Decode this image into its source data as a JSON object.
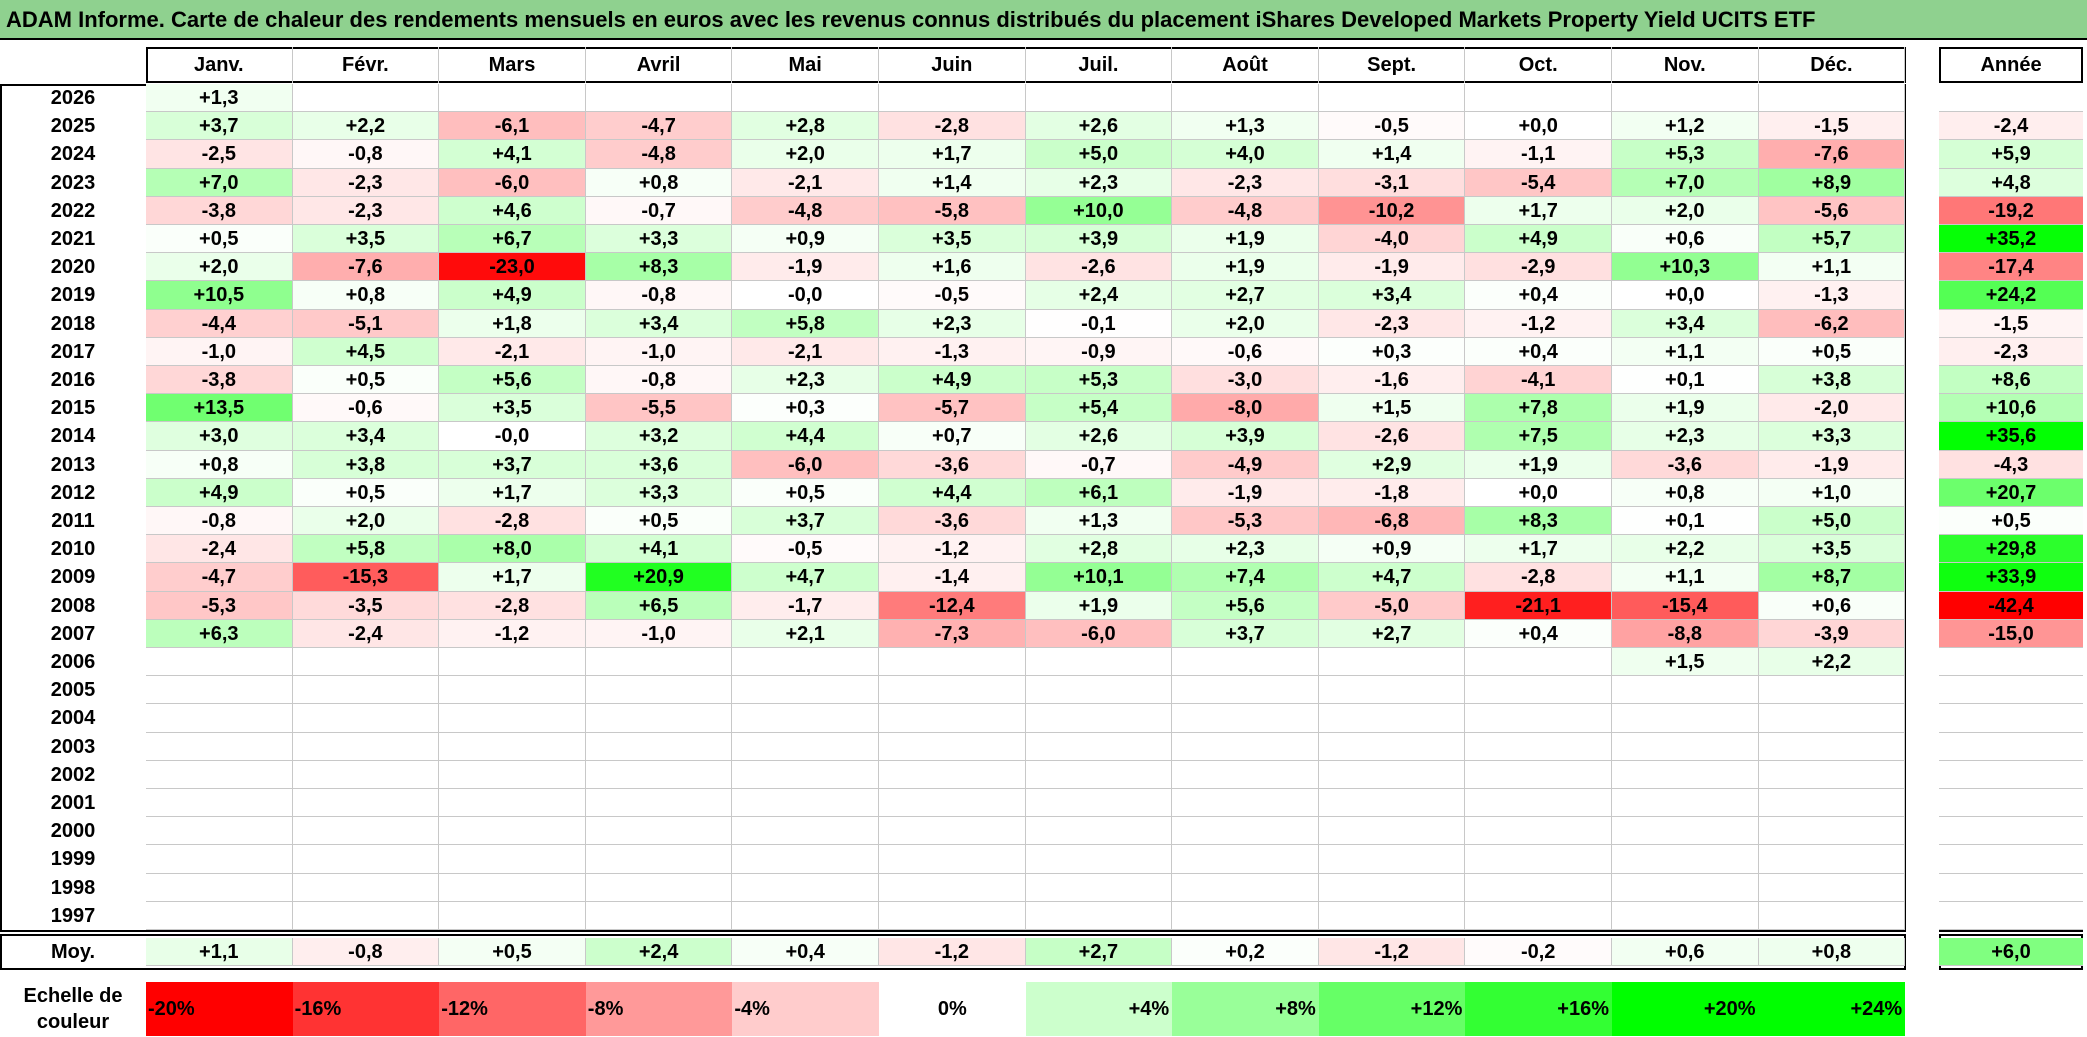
{
  "title": "ADAM Informe. Carte de chaleur des rendements mensuels en euros avec les revenus connus distribués du placement iShares Developed Markets Property Yield UCITS ETF",
  "chart_data": {
    "type": "heatmap",
    "columns": [
      "Janv.",
      "Févr.",
      "Mars",
      "Avril",
      "Mai",
      "Juin",
      "Juil.",
      "Août",
      "Sept.",
      "Oct.",
      "Nov.",
      "Déc."
    ],
    "year_column_label": "Année",
    "rows": [
      {
        "year": "2026",
        "months": [
          "+1,3",
          "",
          "",
          "",
          "",
          "",
          "",
          "",
          "",
          "",
          "",
          ""
        ],
        "annual": ""
      },
      {
        "year": "2025",
        "months": [
          "+3,7",
          "+2,2",
          "-6,1",
          "-4,7",
          "+2,8",
          "-2,8",
          "+2,6",
          "+1,3",
          "-0,5",
          "+0,0",
          "+1,2",
          "-1,5"
        ],
        "annual": "-2,4"
      },
      {
        "year": "2024",
        "months": [
          "-2,5",
          "-0,8",
          "+4,1",
          "-4,8",
          "+2,0",
          "+1,7",
          "+5,0",
          "+4,0",
          "+1,4",
          "-1,1",
          "+5,3",
          "-7,6"
        ],
        "annual": "+5,9"
      },
      {
        "year": "2023",
        "months": [
          "+7,0",
          "-2,3",
          "-6,0",
          "+0,8",
          "-2,1",
          "+1,4",
          "+2,3",
          "-2,3",
          "-3,1",
          "-5,4",
          "+7,0",
          "+8,9"
        ],
        "annual": "+4,8"
      },
      {
        "year": "2022",
        "months": [
          "-3,8",
          "-2,3",
          "+4,6",
          "-0,7",
          "-4,8",
          "-5,8",
          "+10,0",
          "-4,8",
          "-10,2",
          "+1,7",
          "+2,0",
          "-5,6"
        ],
        "annual": "-19,2"
      },
      {
        "year": "2021",
        "months": [
          "+0,5",
          "+3,5",
          "+6,7",
          "+3,3",
          "+0,9",
          "+3,5",
          "+3,9",
          "+1,9",
          "-4,0",
          "+4,9",
          "+0,6",
          "+5,7"
        ],
        "annual": "+35,2"
      },
      {
        "year": "2020",
        "months": [
          "+2,0",
          "-7,6",
          "-23,0",
          "+8,3",
          "-1,9",
          "+1,6",
          "-2,6",
          "+1,9",
          "-1,9",
          "-2,9",
          "+10,3",
          "+1,1"
        ],
        "annual": "-17,4"
      },
      {
        "year": "2019",
        "months": [
          "+10,5",
          "+0,8",
          "+4,9",
          "-0,8",
          "-0,0",
          "-0,5",
          "+2,4",
          "+2,7",
          "+3,4",
          "+0,4",
          "+0,0",
          "-1,3"
        ],
        "annual": "+24,2"
      },
      {
        "year": "2018",
        "months": [
          "-4,4",
          "-5,1",
          "+1,8",
          "+3,4",
          "+5,8",
          "+2,3",
          "-0,1",
          "+2,0",
          "-2,3",
          "-1,2",
          "+3,4",
          "-6,2"
        ],
        "annual": "-1,5"
      },
      {
        "year": "2017",
        "months": [
          "-1,0",
          "+4,5",
          "-2,1",
          "-1,0",
          "-2,1",
          "-1,3",
          "-0,9",
          "-0,6",
          "+0,3",
          "+0,4",
          "+1,1",
          "+0,5"
        ],
        "annual": "-2,3"
      },
      {
        "year": "2016",
        "months": [
          "-3,8",
          "+0,5",
          "+5,6",
          "-0,8",
          "+2,3",
          "+4,9",
          "+5,3",
          "-3,0",
          "-1,6",
          "-4,1",
          "+0,1",
          "+3,8"
        ],
        "annual": "+8,6"
      },
      {
        "year": "2015",
        "months": [
          "+13,5",
          "-0,6",
          "+3,5",
          "-5,5",
          "+0,3",
          "-5,7",
          "+5,4",
          "-8,0",
          "+1,5",
          "+7,8",
          "+1,9",
          "-2,0"
        ],
        "annual": "+10,6"
      },
      {
        "year": "2014",
        "months": [
          "+3,0",
          "+3,4",
          "-0,0",
          "+3,2",
          "+4,4",
          "+0,7",
          "+2,6",
          "+3,9",
          "-2,6",
          "+7,5",
          "+2,3",
          "+3,3"
        ],
        "annual": "+35,6"
      },
      {
        "year": "2013",
        "months": [
          "+0,8",
          "+3,8",
          "+3,7",
          "+3,6",
          "-6,0",
          "-3,6",
          "-0,7",
          "-4,9",
          "+2,9",
          "+1,9",
          "-3,6",
          "-1,9"
        ],
        "annual": "-4,3"
      },
      {
        "year": "2012",
        "months": [
          "+4,9",
          "+0,5",
          "+1,7",
          "+3,3",
          "+0,5",
          "+4,4",
          "+6,1",
          "-1,9",
          "-1,8",
          "+0,0",
          "+0,8",
          "+1,0"
        ],
        "annual": "+20,7"
      },
      {
        "year": "2011",
        "months": [
          "-0,8",
          "+2,0",
          "-2,8",
          "+0,5",
          "+3,7",
          "-3,6",
          "+1,3",
          "-5,3",
          "-6,8",
          "+8,3",
          "+0,1",
          "+5,0"
        ],
        "annual": "+0,5"
      },
      {
        "year": "2010",
        "months": [
          "-2,4",
          "+5,8",
          "+8,0",
          "+4,1",
          "-0,5",
          "-1,2",
          "+2,8",
          "+2,3",
          "+0,9",
          "+1,7",
          "+2,2",
          "+3,5"
        ],
        "annual": "+29,8"
      },
      {
        "year": "2009",
        "months": [
          "-4,7",
          "-15,3",
          "+1,7",
          "+20,9",
          "+4,7",
          "-1,4",
          "+10,1",
          "+7,4",
          "+4,7",
          "-2,8",
          "+1,1",
          "+8,7"
        ],
        "annual": "+33,9"
      },
      {
        "year": "2008",
        "months": [
          "-5,3",
          "-3,5",
          "-2,8",
          "+6,5",
          "-1,7",
          "-12,4",
          "+1,9",
          "+5,6",
          "-5,0",
          "-21,1",
          "-15,4",
          "+0,6"
        ],
        "annual": "-42,4"
      },
      {
        "year": "2007",
        "months": [
          "+6,3",
          "-2,4",
          "-1,2",
          "-1,0",
          "+2,1",
          "-7,3",
          "-6,0",
          "+3,7",
          "+2,7",
          "+0,4",
          "-8,8",
          "-3,9"
        ],
        "annual": "-15,0"
      },
      {
        "year": "2006",
        "months": [
          "",
          "",
          "",
          "",
          "",
          "",
          "",
          "",
          "",
          "",
          "+1,5",
          "+2,2"
        ],
        "annual": ""
      },
      {
        "year": "2005",
        "months": [
          "",
          "",
          "",
          "",
          "",
          "",
          "",
          "",
          "",
          "",
          "",
          ""
        ],
        "annual": ""
      },
      {
        "year": "2004",
        "months": [
          "",
          "",
          "",
          "",
          "",
          "",
          "",
          "",
          "",
          "",
          "",
          ""
        ],
        "annual": ""
      },
      {
        "year": "2003",
        "months": [
          "",
          "",
          "",
          "",
          "",
          "",
          "",
          "",
          "",
          "",
          "",
          ""
        ],
        "annual": ""
      },
      {
        "year": "2002",
        "months": [
          "",
          "",
          "",
          "",
          "",
          "",
          "",
          "",
          "",
          "",
          "",
          ""
        ],
        "annual": ""
      },
      {
        "year": "2001",
        "months": [
          "",
          "",
          "",
          "",
          "",
          "",
          "",
          "",
          "",
          "",
          "",
          ""
        ],
        "annual": ""
      },
      {
        "year": "2000",
        "months": [
          "",
          "",
          "",
          "",
          "",
          "",
          "",
          "",
          "",
          "",
          "",
          ""
        ],
        "annual": ""
      },
      {
        "year": "1999",
        "months": [
          "",
          "",
          "",
          "",
          "",
          "",
          "",
          "",
          "",
          "",
          "",
          ""
        ],
        "annual": ""
      },
      {
        "year": "1998",
        "months": [
          "",
          "",
          "",
          "",
          "",
          "",
          "",
          "",
          "",
          "",
          "",
          ""
        ],
        "annual": ""
      },
      {
        "year": "1997",
        "months": [
          "",
          "",
          "",
          "",
          "",
          "",
          "",
          "",
          "",
          "",
          "",
          ""
        ],
        "annual": ""
      }
    ],
    "average": {
      "label": "Moy.",
      "months": [
        "+1,1",
        "-0,8",
        "+0,5",
        "+2,4",
        "+0,4",
        "-1,2",
        "+2,7",
        "+0,2",
        "-1,2",
        "-0,2",
        "+0,6",
        "+0,8"
      ],
      "annual": "+6,0"
    },
    "color_scale": {
      "label_line1": "Echelle de",
      "label_line2": "couleur",
      "stops": [
        {
          "label": "-20%",
          "value": -20,
          "align": "left"
        },
        {
          "label": "-16%",
          "value": -16,
          "align": "left"
        },
        {
          "label": "-12%",
          "value": -12,
          "align": "left"
        },
        {
          "label": "-8%",
          "value": -8,
          "align": "left"
        },
        {
          "label": "-4%",
          "value": -4,
          "align": "left"
        },
        {
          "label": "0%",
          "value": 0,
          "align": "center"
        },
        {
          "label": "+4%",
          "value": 4,
          "align": "right"
        },
        {
          "label": "+8%",
          "value": 8,
          "align": "right"
        },
        {
          "label": "+12%",
          "value": 12,
          "align": "right"
        },
        {
          "label": "+16%",
          "value": 16,
          "align": "right"
        },
        {
          "label": "+20%",
          "value": 20,
          "align": "right"
        },
        {
          "label": "+24%",
          "value": 24,
          "align": "right"
        }
      ],
      "negative_color": "#ff0000",
      "positive_color": "#00ff00",
      "neutral_color": "#ffffff"
    }
  }
}
